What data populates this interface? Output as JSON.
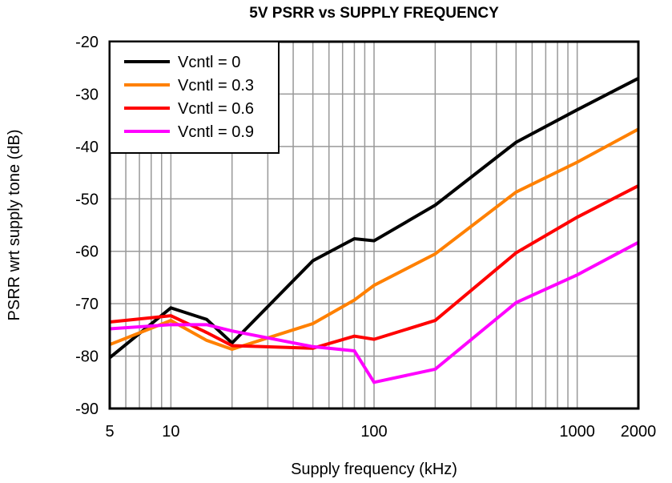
{
  "chart_data": {
    "type": "line",
    "title": "5V PSRR vs SUPPLY FREQUENCY",
    "xlabel": "Supply frequency (kHz)",
    "ylabel": "PSRR wrt supply tone (dB)",
    "xscale": "log",
    "xlim": [
      5,
      2000
    ],
    "ylim": [
      -90,
      -20
    ],
    "grid": true,
    "legend_position": "top-left",
    "x_ticks": [
      5,
      10,
      100,
      1000,
      2000
    ],
    "x_tick_labels": [
      "5",
      "10",
      "100",
      "1000",
      "2000"
    ],
    "y_ticks": [
      -20,
      -30,
      -40,
      -50,
      -60,
      -70,
      -80,
      -90
    ],
    "y_tick_labels": [
      "-20",
      "-30",
      "-40",
      "-50",
      "-60",
      "-70",
      "-80",
      "-90"
    ],
    "x": [
      5,
      10,
      15,
      20,
      50,
      80,
      100,
      200,
      500,
      1000,
      2000
    ],
    "series": [
      {
        "name": "Vcntl = 0",
        "color": "#000000",
        "values": [
          -80.3,
          -70.8,
          -73,
          -77.5,
          -61.8,
          -57.6,
          -58,
          -51.2,
          -39.2,
          -33,
          -27
        ]
      },
      {
        "name": "Vcntl = 0.3",
        "color": "#ff8000",
        "values": [
          -77.8,
          -73.2,
          -77,
          -78.7,
          -73.8,
          -69.3,
          -66.5,
          -60.5,
          -48.7,
          -43,
          -36.7
        ]
      },
      {
        "name": "Vcntl = 0.6",
        "color": "#ff0000",
        "values": [
          -73.5,
          -72.3,
          -75.5,
          -78,
          -78.5,
          -76.2,
          -76.8,
          -73.2,
          -60.3,
          -53.5,
          -47.5
        ]
      },
      {
        "name": "Vcntl = 0.9",
        "color": "#ff00ff",
        "values": [
          -74.8,
          -74,
          -74,
          -75.2,
          -78.2,
          -79,
          -85,
          -82.5,
          -69.8,
          -64.5,
          -58.3
        ]
      }
    ]
  }
}
